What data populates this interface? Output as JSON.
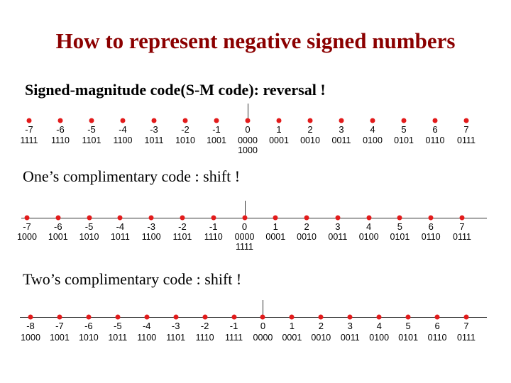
{
  "title": "How to represent negative signed numbers",
  "sections": [
    {
      "heading": "Signed-magnitude code(S-M code): reversal !",
      "numbers": [
        "-7",
        "-6",
        "-5",
        "-4",
        "-3",
        "-2",
        "-1",
        "0",
        "1",
        "2",
        "3",
        "4",
        "5",
        "6",
        "7"
      ],
      "codes": [
        "1111",
        "1110",
        "1101",
        "1100",
        "1011",
        "1010",
        "1001",
        "0000",
        "0001",
        "0010",
        "0011",
        "0100",
        "0101",
        "0110",
        "0111"
      ],
      "extra_code": "1000",
      "extra_code_under": "0"
    },
    {
      "heading": "One’s complimentary code : shift !",
      "numbers": [
        "-7",
        "-6",
        "-5",
        "-4",
        "-3",
        "-2",
        "-1",
        "0",
        "1",
        "2",
        "3",
        "4",
        "5",
        "6",
        "7"
      ],
      "codes": [
        "1000",
        "1001",
        "1010",
        "1011",
        "1100",
        "1101",
        "1110",
        "0000",
        "0001",
        "0010",
        "0011",
        "0100",
        "0101",
        "0110",
        "0111"
      ],
      "extra_code": "1111",
      "extra_code_under": "0"
    },
    {
      "heading": "Two’s complimentary code : shift !",
      "numbers": [
        "-8",
        "-7",
        "-6",
        "-5",
        "-4",
        "-3",
        "-2",
        "-1",
        "0",
        "1",
        "2",
        "3",
        "4",
        "5",
        "6",
        "7"
      ],
      "codes": [
        "1000",
        "1001",
        "1010",
        "1011",
        "1100",
        "1101",
        "1110",
        "1111",
        "0000",
        "0001",
        "0010",
        "0011",
        "0100",
        "0101",
        "0110",
        "0111"
      ]
    }
  ],
  "colors": {
    "title": "#8b0000",
    "dot": "#e21b1b"
  }
}
